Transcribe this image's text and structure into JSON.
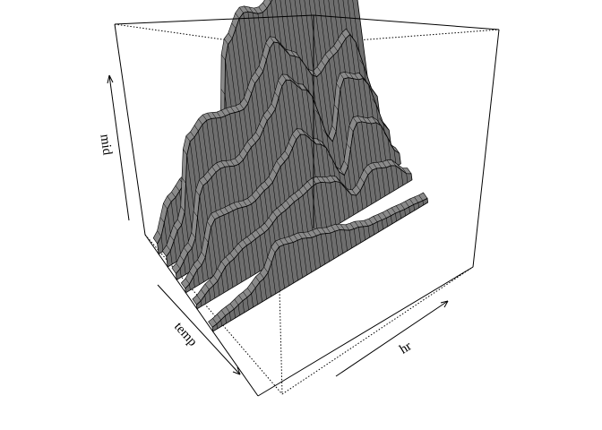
{
  "chart_data": {
    "type": "surface",
    "title": "",
    "xlabel": "hr",
    "ylabel": "temp",
    "zlabel": "mid",
    "box": true,
    "axes_ticks": false,
    "colors": {
      "surface": "#6e6e6e",
      "cap": "#8a8a8a",
      "edge": "#000000",
      "highlight": "#e8e8e8"
    },
    "approx_profiles": [
      {
        "temp": 0.12,
        "mid": [
          0.05,
          0.2,
          0.25,
          0.3,
          0.32,
          0.75,
          0.85,
          0.8,
          0.85,
          0.9,
          1.0,
          0.98,
          0.6
        ]
      },
      {
        "temp": 0.2,
        "mid": [
          0.05,
          0.15,
          0.5,
          0.55,
          0.52,
          0.5,
          0.6,
          0.72,
          0.6,
          0.45,
          0.5,
          0.55,
          0.2
        ]
      },
      {
        "temp": 0.28,
        "mid": [
          0.03,
          0.1,
          0.35,
          0.38,
          0.35,
          0.4,
          0.48,
          0.6,
          0.5,
          0.2,
          0.45,
          0.4,
          0.1
        ]
      },
      {
        "temp": 0.36,
        "mid": [
          0.02,
          0.08,
          0.25,
          0.24,
          0.22,
          0.25,
          0.32,
          0.4,
          0.3,
          0.1,
          0.3,
          0.25,
          0.05
        ]
      },
      {
        "temp": 0.46,
        "mid": [
          0.02,
          0.06,
          0.12,
          0.15,
          0.16,
          0.2,
          0.22,
          0.24,
          0.2,
          0.08,
          0.15,
          0.12,
          0.03
        ]
      },
      {
        "temp": 0.6,
        "mid": [
          0.02,
          0.04,
          0.06,
          0.1,
          0.2,
          0.18,
          0.15,
          0.12,
          0.08,
          0.05,
          0.04,
          0.03,
          0.02
        ]
      }
    ]
  }
}
